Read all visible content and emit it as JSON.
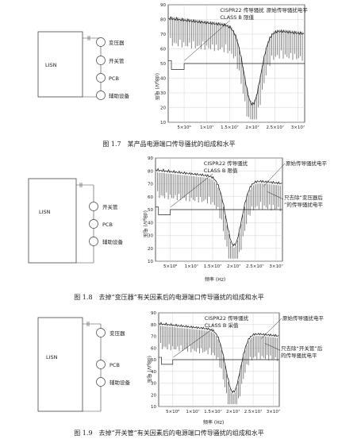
{
  "figures": [
    {
      "id": "fig17",
      "caption": "图 1.7　某产品电源端口传导骚扰的组成和水平",
      "lisn": "LISN",
      "components": [
        "变压器",
        "开关管",
        "PCB",
        "辅助设备"
      ],
      "annot_cispr": "CISPR22 传导骚扰",
      "annot_class": "CLASS B 限值",
      "annot_orig": "原始传导骚扰电平",
      "annot_extra": "",
      "ylabel": "(dBμV) 电压",
      "xlabel": "",
      "yticks": [
        "90",
        "80",
        "70",
        "60",
        "50",
        "40",
        "30",
        "20",
        "10"
      ],
      "xticks": [
        "5×10⁶",
        "1×10⁷",
        "1.5×10⁷",
        "2×10⁷",
        "2.5×10⁷",
        "3×10⁷"
      ]
    },
    {
      "id": "fig18",
      "caption": "图 1.8　去掉“变压器”有关因素后的电源端口传导骚扰的组成和水平",
      "lisn": "LISN",
      "components": [
        "开关管",
        "PCB",
        "辅助设备"
      ],
      "annot_cispr": "CISPR22 传导骚扰",
      "annot_class": "CLASS B 限值",
      "annot_orig": "原始传导骚扰电平",
      "annot_extra": "只去除“变压器后”的传导骚扰电平",
      "ylabel": "(dBμV) 电压",
      "xlabel": "频率 (Hz)",
      "yticks": [
        "90",
        "80",
        "70",
        "60",
        "50",
        "40",
        "30",
        "20",
        "10"
      ],
      "xticks": [
        "5×10⁶",
        "1×10⁷",
        "1.5×10⁷",
        "2×10⁷",
        "2.5×10⁷",
        "3×10⁷"
      ]
    },
    {
      "id": "fig19",
      "caption": "图 1.9　去掉“开关管”有关因素后的电源端口传导骚扰的组成和水平",
      "lisn": "LISN",
      "components": [
        "变压器",
        "PCB",
        "辅助设备"
      ],
      "annot_cispr": "CISPR22 传导骚扰",
      "annot_class": "CLASS B 采值",
      "annot_orig": "原始传导骚扰电平",
      "annot_extra": "只去除“开关管”后的传导骚扰电平",
      "ylabel": "(dBμV) 电压",
      "xlabel": "频率 (Hz)",
      "yticks": [
        "90",
        "80",
        "70",
        "60",
        "50",
        "40",
        "30",
        "20",
        "10"
      ],
      "xticks": [
        "5×10⁶",
        "1×10⁷",
        "1.5×10⁷",
        "2×10⁷",
        "2.5×10⁷",
        "3×10⁷"
      ]
    }
  ]
}
